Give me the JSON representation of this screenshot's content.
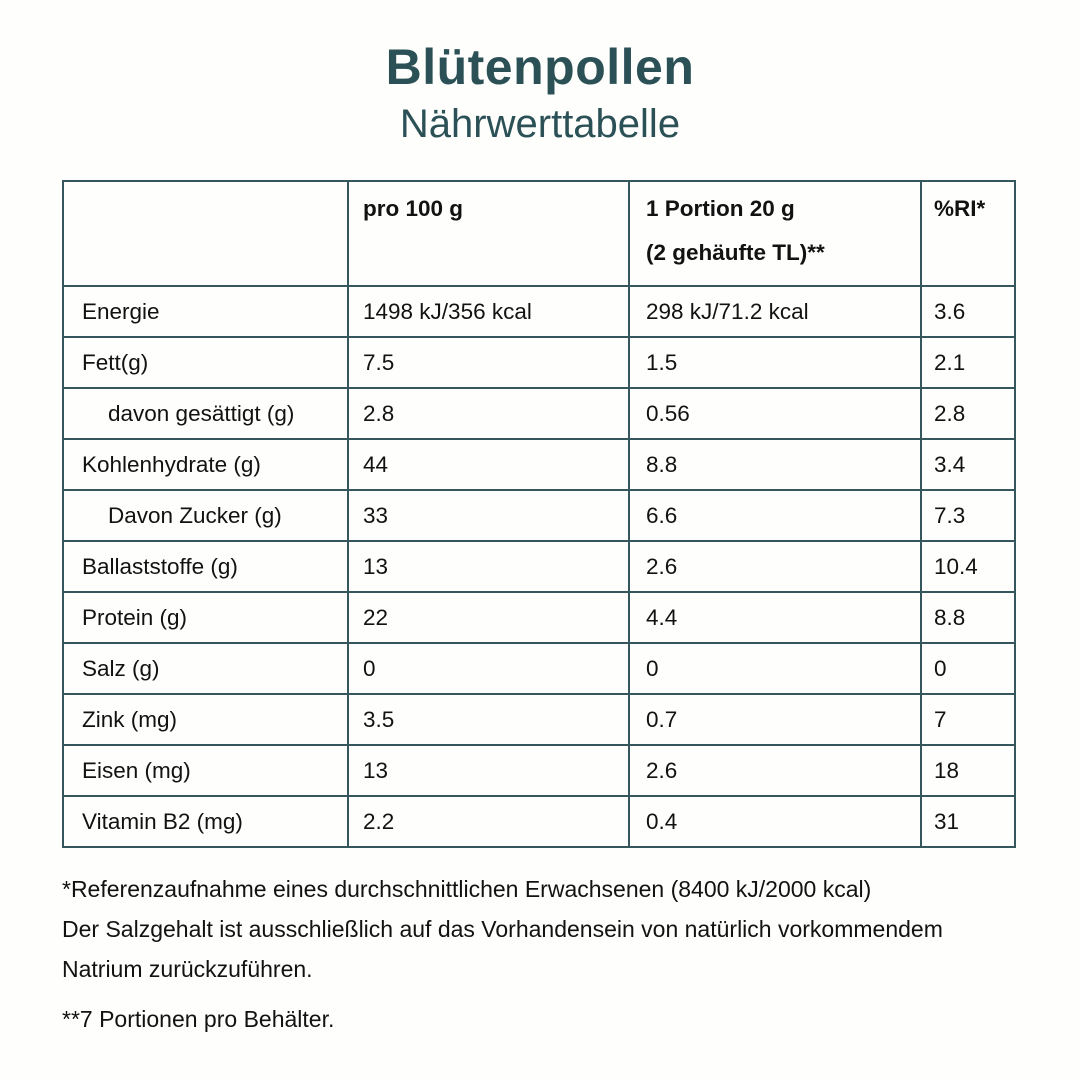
{
  "title": "Blütenpollen",
  "subtitle": "Nährwerttabelle",
  "colors": {
    "accent": "#2b5157",
    "border": "#35565c",
    "text": "#121212",
    "background": "#fefefc"
  },
  "table": {
    "header": {
      "label": "",
      "per100": "pro 100 g",
      "portion_line1": "1 Portion 20 g",
      "portion_line2": "(2 gehäufte TL)**",
      "ri": "%RI*"
    },
    "rows": [
      {
        "label": "Energie",
        "indent": false,
        "per100": "1498 kJ/356 kcal",
        "portion": "298 kJ/71.2 kcal",
        "ri": "3.6"
      },
      {
        "label": "Fett(g)",
        "indent": false,
        "per100": "7.5",
        "portion": "1.5",
        "ri": "2.1"
      },
      {
        "label": "davon gesättigt (g)",
        "indent": true,
        "per100": "2.8",
        "portion": "0.56",
        "ri": "2.8"
      },
      {
        "label": "Kohlenhydrate (g)",
        "indent": false,
        "per100": "44",
        "portion": "8.8",
        "ri": "3.4"
      },
      {
        "label": "Davon Zucker (g)",
        "indent": true,
        "per100": "33",
        "portion": "6.6",
        "ri": "7.3"
      },
      {
        "label": "Ballaststoffe (g)",
        "indent": false,
        "per100": "13",
        "portion": "2.6",
        "ri": "10.4"
      },
      {
        "label": "Protein (g)",
        "indent": false,
        "per100": "22",
        "portion": "4.4",
        "ri": "8.8"
      },
      {
        "label": "Salz (g)",
        "indent": false,
        "per100": "0",
        "portion": "0",
        "ri": "0"
      },
      {
        "label": "Zink (mg)",
        "indent": false,
        "per100": "3.5",
        "portion": "0.7",
        "ri": "7"
      },
      {
        "label": "Eisen (mg)",
        "indent": false,
        "per100": "13",
        "portion": "2.6",
        "ri": "18"
      },
      {
        "label": "Vitamin B2 (mg)",
        "indent": false,
        "per100": "2.2",
        "portion": "0.4",
        "ri": "31"
      }
    ]
  },
  "footnotes": {
    "lines": [
      "*Referenzaufnahme eines durchschnittlichen Erwachsenen (8400 kJ/2000 kcal)",
      "Der Salzgehalt ist ausschließlich auf das Vorhandensein von natürlich vorkommendem",
      "Natrium zurückzuführen."
    ],
    "servings": "**7 Portionen pro Behälter."
  }
}
